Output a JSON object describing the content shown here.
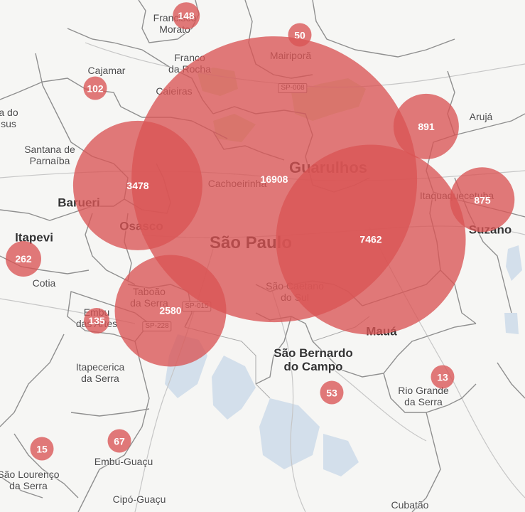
{
  "colors": {
    "bubble": "#da5555",
    "park": "#cfe3b8",
    "water": "#cfdbe8",
    "border": "#8a8a8a"
  },
  "labels": [
    {
      "key": "francisco-morato",
      "text": "Francisco\nMorato"
    },
    {
      "key": "mairipora",
      "text": "Mairiporã"
    },
    {
      "key": "franco-da-rocha",
      "text": "Franco\nda Rocha"
    },
    {
      "key": "cajamar",
      "text": "Cajamar"
    },
    {
      "key": "caieiras",
      "text": "Caieiras"
    },
    {
      "key": "aruja",
      "text": "Arujá"
    },
    {
      "key": "da-do-sus",
      "text": "a do\nsus"
    },
    {
      "key": "santana-de-parnaiba",
      "text": "Santana de\nParnaíba"
    },
    {
      "key": "guarulhos",
      "text": "Guarulhos"
    },
    {
      "key": "cachoeirinha",
      "text": "Cachoeirinha"
    },
    {
      "key": "barueri",
      "text": "Barueri"
    },
    {
      "key": "itaquaquecetuba",
      "text": "Itaquaquecetuba"
    },
    {
      "key": "osasco",
      "text": "Osasco"
    },
    {
      "key": "suzano",
      "text": "Suzano"
    },
    {
      "key": "itapevi",
      "text": "Itapevi"
    },
    {
      "key": "sao-paulo",
      "text": "São Paulo"
    },
    {
      "key": "cotia",
      "text": "Cotia"
    },
    {
      "key": "sao-caetano-do-sul",
      "text": "São Caetano\ndo Sul"
    },
    {
      "key": "taboao-da-serra",
      "text": "Taboão\nda Serra"
    },
    {
      "key": "embu-das-artes",
      "text": "Embu\ndas Artes"
    },
    {
      "key": "maua",
      "text": "Mauá"
    },
    {
      "key": "sao-bernardo-do-campo",
      "text": "São Bernardo\ndo Campo"
    },
    {
      "key": "itapecerica-da-serra",
      "text": "Itapecerica\nda Serra"
    },
    {
      "key": "rio-grande-da-serra",
      "text": "Rio Grande\nda Serra"
    },
    {
      "key": "embu-guacu",
      "text": "Embu-Guaçu"
    },
    {
      "key": "sao-lourenco-da-serra",
      "text": "São Lourenço\nda Serra"
    },
    {
      "key": "cipo-guacu",
      "text": "Cipó-Guaçu"
    },
    {
      "key": "cubatao",
      "text": "Cubatão"
    }
  ],
  "road_shields": [
    {
      "key": "sp-008",
      "text": "SP-008"
    },
    {
      "key": "sp-015",
      "text": "SP-015"
    },
    {
      "key": "sp-228",
      "text": "SP-228"
    }
  ],
  "bubbles": [
    {
      "key": "francisco-morato",
      "value": 148
    },
    {
      "key": "mairipora",
      "value": 50
    },
    {
      "key": "cajamar",
      "value": 102
    },
    {
      "key": "guarulhos",
      "value": 891
    },
    {
      "key": "sao-paulo",
      "value": 16908
    },
    {
      "key": "osasco",
      "value": 3478
    },
    {
      "key": "itaquaquecetuba",
      "value": 875
    },
    {
      "key": "sao-paulo-east",
      "value": 7462
    },
    {
      "key": "itapevi",
      "value": 262
    },
    {
      "key": "taboao-da-serra",
      "value": 2580
    },
    {
      "key": "embu-das-artes",
      "value": 135
    },
    {
      "key": "rio-grande-da-serra",
      "value": 13
    },
    {
      "key": "sao-bernardo-do-campo",
      "value": 53
    },
    {
      "key": "sao-lourenco-da-serra",
      "value": 15
    },
    {
      "key": "embu-guacu",
      "value": 67
    }
  ]
}
